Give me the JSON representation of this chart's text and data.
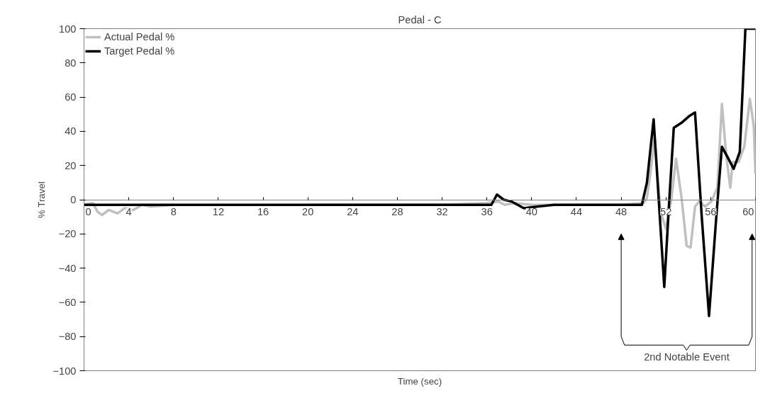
{
  "chart_data": {
    "type": "line",
    "title": "Pedal - C",
    "xlabel": "Time (sec)",
    "ylabel": "% Travel",
    "xlim": [
      0,
      60
    ],
    "xticks": [
      0,
      4,
      8,
      12,
      16,
      20,
      24,
      28,
      32,
      36,
      40,
      44,
      48,
      52,
      56,
      60
    ],
    "ylim": [
      -100,
      100
    ],
    "yticks": [
      -100,
      -80,
      -60,
      -40,
      -20,
      0,
      20,
      40,
      60,
      80,
      100
    ],
    "grid": false,
    "legend": "top left",
    "line_style": "solid",
    "marker": "none",
    "annotations": [
      "2nd Notable Event"
    ],
    "series": [
      {
        "name": "Actual Pedal %",
        "color": "#c0c0c0",
        "x": [
          0,
          0.8,
          1.2,
          1.6,
          2.2,
          3,
          3.6,
          4.4,
          5.2,
          6,
          8,
          12,
          20,
          28,
          32,
          36,
          37,
          37.6,
          38.4,
          40,
          44,
          48,
          50,
          50.3,
          50.6,
          51,
          51.5,
          52,
          52.5,
          52.9,
          53.4,
          53.85,
          54.2,
          54.6,
          55,
          55.5,
          56.06,
          56.6,
          57,
          57.4,
          57.75,
          57.96,
          58.5,
          59,
          59.5,
          59.85,
          60
        ],
        "values": [
          -3,
          -2,
          -7,
          -9,
          -6,
          -8,
          -5,
          -6,
          -3,
          -4,
          -3,
          null,
          -3,
          -3,
          -3,
          -2,
          -1,
          -3,
          -2,
          -3,
          -3,
          -3,
          -2,
          1,
          15,
          36,
          -7,
          -17,
          1,
          24,
          1,
          -27,
          -28,
          -4,
          -1,
          -4,
          -1,
          7,
          56,
          25,
          7,
          22,
          22,
          31,
          59,
          43,
          15
        ]
      },
      {
        "name": "Target Pedal %",
        "color": "#000000",
        "x": [
          0,
          10,
          20,
          30,
          36.4,
          36.9,
          37.5,
          38.2,
          39.3,
          40.5,
          42,
          44,
          48,
          49.85,
          50.3,
          50.9,
          51.85,
          52.3,
          52.7,
          53.4,
          54.1,
          54.6,
          55.2,
          55.85,
          56.5,
          57.0,
          57.5,
          58.05,
          58.6,
          59.1,
          60
        ],
        "values": [
          -3,
          -3,
          -3,
          -3,
          -3,
          3,
          0,
          -1,
          -5,
          -4,
          -3,
          -3,
          -3,
          -3,
          10,
          47,
          -51,
          0,
          42,
          45,
          49,
          51,
          -10,
          -68,
          -10,
          31,
          25,
          18,
          28,
          100,
          100
        ]
      }
    ]
  }
}
